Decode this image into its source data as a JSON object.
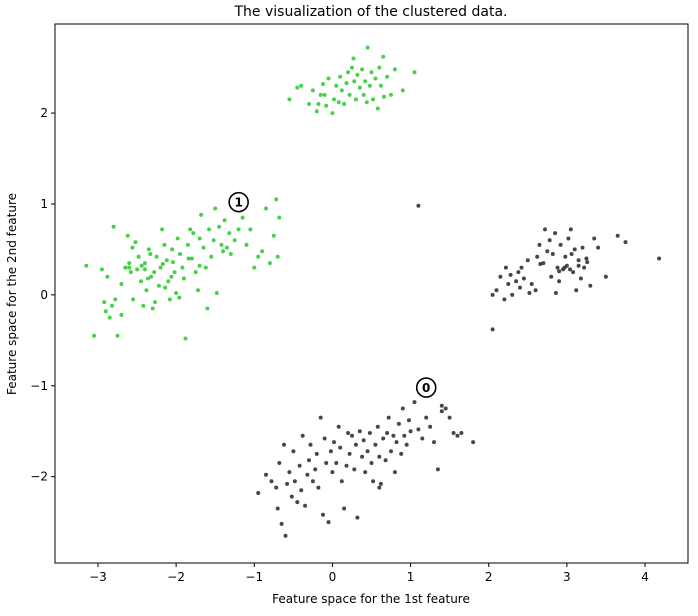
{
  "chart_data": {
    "type": "scatter",
    "title": "The visualization of the clustered data.",
    "xlabel": "Feature space for the 1st feature",
    "ylabel": "Feature space for the 2nd feature",
    "xlim": [
      -3.55,
      4.55
    ],
    "ylim": [
      -2.95,
      2.98
    ],
    "xticks": [
      -3,
      -2,
      -1,
      0,
      1,
      2,
      3,
      4
    ],
    "xtick_labels": [
      "−3",
      "−2",
      "−1",
      "0",
      "1",
      "2",
      "3",
      "4"
    ],
    "yticks": [
      -2,
      -1,
      0,
      1,
      2
    ],
    "ytick_labels": [
      "−2",
      "−1",
      "0",
      "1",
      "2"
    ],
    "grid": false,
    "colors": {
      "cluster_0": "#333333",
      "cluster_1": "#33cc33"
    },
    "centers": [
      {
        "label": "0",
        "x": 1.2,
        "y": -1.02
      },
      {
        "label": "1",
        "x": -1.2,
        "y": 1.02
      }
    ],
    "series": [
      {
        "cluster": 1,
        "color": "#33cc33",
        "points": [
          [
            -0.55,
            2.15
          ],
          [
            -0.4,
            2.3
          ],
          [
            -0.3,
            2.1
          ],
          [
            -0.25,
            2.25
          ],
          [
            -0.2,
            2.02
          ],
          [
            -0.15,
            2.2
          ],
          [
            -0.12,
            2.32
          ],
          [
            -0.1,
            2.2
          ],
          [
            -0.08,
            2.08
          ],
          [
            -0.05,
            2.38
          ],
          [
            0.0,
            2.0
          ],
          [
            0.02,
            2.15
          ],
          [
            0.05,
            2.3
          ],
          [
            0.1,
            2.4
          ],
          [
            0.12,
            2.25
          ],
          [
            0.15,
            2.1
          ],
          [
            0.18,
            2.33
          ],
          [
            0.2,
            2.45
          ],
          [
            0.22,
            2.2
          ],
          [
            0.25,
            2.5
          ],
          [
            0.28,
            2.35
          ],
          [
            0.3,
            2.15
          ],
          [
            0.32,
            2.42
          ],
          [
            0.35,
            2.28
          ],
          [
            0.38,
            2.48
          ],
          [
            0.4,
            2.2
          ],
          [
            0.42,
            2.35
          ],
          [
            0.45,
            2.72
          ],
          [
            0.48,
            2.3
          ],
          [
            0.5,
            2.45
          ],
          [
            0.52,
            2.15
          ],
          [
            0.55,
            2.38
          ],
          [
            0.58,
            2.05
          ],
          [
            0.6,
            2.5
          ],
          [
            0.62,
            2.3
          ],
          [
            0.65,
            2.62
          ],
          [
            0.7,
            2.4
          ],
          [
            0.75,
            2.2
          ],
          [
            0.8,
            2.48
          ],
          [
            0.9,
            2.25
          ],
          [
            1.05,
            2.45
          ],
          [
            -0.45,
            2.28
          ],
          [
            -0.18,
            2.1
          ],
          [
            0.08,
            2.12
          ],
          [
            0.27,
            2.6
          ],
          [
            0.44,
            2.12
          ],
          [
            0.66,
            2.18
          ],
          [
            -3.15,
            0.32
          ],
          [
            -3.05,
            -0.45
          ],
          [
            -2.95,
            0.28
          ],
          [
            -2.92,
            -0.08
          ],
          [
            -2.88,
            0.2
          ],
          [
            -2.85,
            -0.25
          ],
          [
            -2.82,
            -0.12
          ],
          [
            -2.8,
            0.75
          ],
          [
            -2.78,
            -0.05
          ],
          [
            -2.75,
            -0.45
          ],
          [
            -2.7,
            0.12
          ],
          [
            -2.65,
            0.3
          ],
          [
            -2.62,
            0.65
          ],
          [
            -2.6,
            0.35
          ],
          [
            -2.58,
            0.25
          ],
          [
            -2.55,
            -0.05
          ],
          [
            -2.52,
            0.58
          ],
          [
            -2.5,
            0.28
          ],
          [
            -2.48,
            0.42
          ],
          [
            -2.45,
            0.15
          ],
          [
            -2.42,
            -0.12
          ],
          [
            -2.4,
            0.35
          ],
          [
            -2.38,
            0.05
          ],
          [
            -2.35,
            0.5
          ],
          [
            -2.32,
            0.2
          ],
          [
            -2.3,
            -0.15
          ],
          [
            -2.28,
            0.25
          ],
          [
            -2.25,
            0.42
          ],
          [
            -2.22,
            0.1
          ],
          [
            -2.2,
            0.3
          ],
          [
            -2.18,
            0.72
          ],
          [
            -2.15,
            0.55
          ],
          [
            -2.12,
            0.38
          ],
          [
            -2.1,
            0.15
          ],
          [
            -2.08,
            -0.05
          ],
          [
            -2.05,
            0.5
          ],
          [
            -2.02,
            0.25
          ],
          [
            -2.0,
            0.02
          ],
          [
            -1.98,
            0.62
          ],
          [
            -1.95,
            0.45
          ],
          [
            -1.92,
            0.3
          ],
          [
            -1.9,
            0.18
          ],
          [
            -1.88,
            -0.48
          ],
          [
            -1.85,
            0.55
          ],
          [
            -1.82,
            0.72
          ],
          [
            -1.8,
            0.4
          ],
          [
            -1.78,
            0.68
          ],
          [
            -1.75,
            0.25
          ],
          [
            -1.72,
            0.05
          ],
          [
            -1.7,
            0.62
          ],
          [
            -1.68,
            0.88
          ],
          [
            -1.65,
            0.52
          ],
          [
            -1.62,
            0.3
          ],
          [
            -1.6,
            -0.15
          ],
          [
            -1.58,
            0.72
          ],
          [
            -1.55,
            0.42
          ],
          [
            -1.52,
            0.6
          ],
          [
            -1.5,
            0.95
          ],
          [
            -1.48,
            0.02
          ],
          [
            -1.45,
            0.75
          ],
          [
            -1.42,
            0.55
          ],
          [
            -1.4,
            0.48
          ],
          [
            -1.38,
            0.82
          ],
          [
            -1.35,
            0.52
          ],
          [
            -1.32,
            0.68
          ],
          [
            -1.3,
            0.45
          ],
          [
            -1.25,
            0.6
          ],
          [
            -1.2,
            0.72
          ],
          [
            -1.15,
            0.85
          ],
          [
            -1.1,
            0.55
          ],
          [
            -1.05,
            0.72
          ],
          [
            -1.0,
            0.3
          ],
          [
            -0.95,
            0.42
          ],
          [
            -0.9,
            0.48
          ],
          [
            -0.85,
            0.95
          ],
          [
            -0.8,
            0.35
          ],
          [
            -0.75,
            0.65
          ],
          [
            -0.72,
            1.05
          ],
          [
            -0.7,
            0.42
          ],
          [
            -0.68,
            0.85
          ],
          [
            -2.4,
            0.28
          ],
          [
            -2.27,
            -0.08
          ],
          [
            -2.17,
            0.34
          ],
          [
            -2.04,
            0.36
          ],
          [
            -2.6,
            0.3
          ],
          [
            -2.33,
            0.45
          ],
          [
            -1.96,
            -0.03
          ],
          [
            -2.14,
            0.08
          ],
          [
            -2.56,
            0.52
          ],
          [
            -2.36,
            0.18
          ],
          [
            -2.06,
            0.2
          ],
          [
            -2.44,
            0.32
          ],
          [
            -1.84,
            0.4
          ],
          [
            -1.7,
            0.32
          ],
          [
            -2.9,
            -0.18
          ],
          [
            -2.7,
            -0.22
          ]
        ]
      },
      {
        "cluster": 0,
        "color": "#333333",
        "points": [
          [
            1.1,
            0.98
          ],
          [
            2.05,
            -0.38
          ],
          [
            2.05,
            0.0
          ],
          [
            2.1,
            0.05
          ],
          [
            2.15,
            0.2
          ],
          [
            2.2,
            -0.05
          ],
          [
            2.22,
            0.3
          ],
          [
            2.25,
            0.12
          ],
          [
            2.28,
            0.22
          ],
          [
            2.3,
            0.0
          ],
          [
            2.35,
            0.15
          ],
          [
            2.38,
            0.25
          ],
          [
            2.4,
            0.08
          ],
          [
            2.42,
            0.3
          ],
          [
            2.45,
            0.18
          ],
          [
            2.5,
            0.38
          ],
          [
            2.52,
            0.02
          ],
          [
            2.55,
            0.12
          ],
          [
            2.6,
            0.05
          ],
          [
            2.62,
            0.42
          ],
          [
            2.65,
            0.55
          ],
          [
            2.7,
            0.35
          ],
          [
            2.72,
            0.72
          ],
          [
            2.75,
            0.48
          ],
          [
            2.78,
            0.6
          ],
          [
            2.8,
            0.2
          ],
          [
            2.82,
            0.45
          ],
          [
            2.85,
            0.68
          ],
          [
            2.88,
            0.3
          ],
          [
            2.9,
            0.15
          ],
          [
            2.92,
            0.55
          ],
          [
            2.95,
            0.28
          ],
          [
            2.98,
            0.42
          ],
          [
            3.0,
            0.32
          ],
          [
            3.02,
            0.62
          ],
          [
            3.05,
            0.72
          ],
          [
            3.08,
            0.25
          ],
          [
            3.1,
            0.5
          ],
          [
            3.12,
            0.05
          ],
          [
            3.15,
            0.38
          ],
          [
            3.18,
            0.18
          ],
          [
            3.2,
            0.52
          ],
          [
            3.22,
            0.3
          ],
          [
            3.25,
            0.4
          ],
          [
            3.3,
            0.1
          ],
          [
            3.35,
            0.62
          ],
          [
            3.4,
            0.52
          ],
          [
            3.5,
            0.2
          ],
          [
            3.65,
            0.65
          ],
          [
            3.75,
            0.58
          ],
          [
            4.18,
            0.4
          ],
          [
            2.97,
            0.3
          ],
          [
            3.04,
            0.28
          ],
          [
            3.15,
            0.32
          ],
          [
            2.9,
            0.26
          ],
          [
            3.26,
            0.36
          ],
          [
            2.66,
            0.34
          ],
          [
            3.06,
            0.45
          ],
          [
            2.86,
            0.02
          ],
          [
            -0.95,
            -2.18
          ],
          [
            -0.85,
            -1.98
          ],
          [
            -0.78,
            -2.05
          ],
          [
            -0.72,
            -2.12
          ],
          [
            -0.7,
            -2.35
          ],
          [
            -0.68,
            -1.85
          ],
          [
            -0.65,
            -2.52
          ],
          [
            -0.62,
            -1.65
          ],
          [
            -0.6,
            -2.65
          ],
          [
            -0.58,
            -2.08
          ],
          [
            -0.55,
            -1.95
          ],
          [
            -0.52,
            -2.22
          ],
          [
            -0.5,
            -1.72
          ],
          [
            -0.48,
            -2.05
          ],
          [
            -0.45,
            -2.28
          ],
          [
            -0.42,
            -1.88
          ],
          [
            -0.4,
            -2.15
          ],
          [
            -0.38,
            -1.55
          ],
          [
            -0.35,
            -2.32
          ],
          [
            -0.32,
            -1.98
          ],
          [
            -0.3,
            -1.82
          ],
          [
            -0.28,
            -1.65
          ],
          [
            -0.25,
            -2.05
          ],
          [
            -0.22,
            -1.92
          ],
          [
            -0.2,
            -1.75
          ],
          [
            -0.18,
            -2.12
          ],
          [
            -0.15,
            -1.35
          ],
          [
            -0.12,
            -2.42
          ],
          [
            -0.1,
            -1.58
          ],
          [
            -0.08,
            -1.85
          ],
          [
            -0.05,
            -2.5
          ],
          [
            -0.02,
            -1.72
          ],
          [
            0.0,
            -1.95
          ],
          [
            0.02,
            -1.62
          ],
          [
            0.05,
            -1.85
          ],
          [
            0.08,
            -1.45
          ],
          [
            0.1,
            -1.68
          ],
          [
            0.12,
            -2.05
          ],
          [
            0.15,
            -2.35
          ],
          [
            0.18,
            -1.88
          ],
          [
            0.2,
            -1.52
          ],
          [
            0.22,
            -1.75
          ],
          [
            0.25,
            -1.55
          ],
          [
            0.28,
            -1.92
          ],
          [
            0.3,
            -1.65
          ],
          [
            0.32,
            -2.45
          ],
          [
            0.35,
            -1.5
          ],
          [
            0.38,
            -1.78
          ],
          [
            0.4,
            -1.6
          ],
          [
            0.42,
            -1.95
          ],
          [
            0.45,
            -1.72
          ],
          [
            0.48,
            -1.52
          ],
          [
            0.5,
            -1.85
          ],
          [
            0.52,
            -2.05
          ],
          [
            0.55,
            -1.65
          ],
          [
            0.58,
            -1.45
          ],
          [
            0.6,
            -1.78
          ],
          [
            0.62,
            -2.08
          ],
          [
            0.65,
            -1.58
          ],
          [
            0.68,
            -1.82
          ],
          [
            0.7,
            -1.52
          ],
          [
            0.72,
            -1.35
          ],
          [
            0.75,
            -1.72
          ],
          [
            0.78,
            -1.55
          ],
          [
            0.8,
            -1.95
          ],
          [
            0.82,
            -1.62
          ],
          [
            0.85,
            -1.42
          ],
          [
            0.88,
            -1.75
          ],
          [
            0.9,
            -1.25
          ],
          [
            0.92,
            -1.55
          ],
          [
            0.95,
            -1.65
          ],
          [
            0.98,
            -1.38
          ],
          [
            1.0,
            -1.5
          ],
          [
            1.05,
            -1.18
          ],
          [
            1.1,
            -1.48
          ],
          [
            1.15,
            -1.58
          ],
          [
            1.2,
            -1.35
          ],
          [
            1.25,
            -1.45
          ],
          [
            1.3,
            -1.62
          ],
          [
            1.35,
            -1.92
          ],
          [
            1.4,
            -1.28
          ],
          [
            1.45,
            -1.25
          ],
          [
            1.5,
            -1.35
          ],
          [
            1.55,
            -1.52
          ],
          [
            1.6,
            -1.55
          ],
          [
            1.65,
            -1.52
          ],
          [
            1.8,
            -1.62
          ],
          [
            1.4,
            -1.22
          ],
          [
            0.6,
            -2.12
          ]
        ]
      }
    ]
  }
}
